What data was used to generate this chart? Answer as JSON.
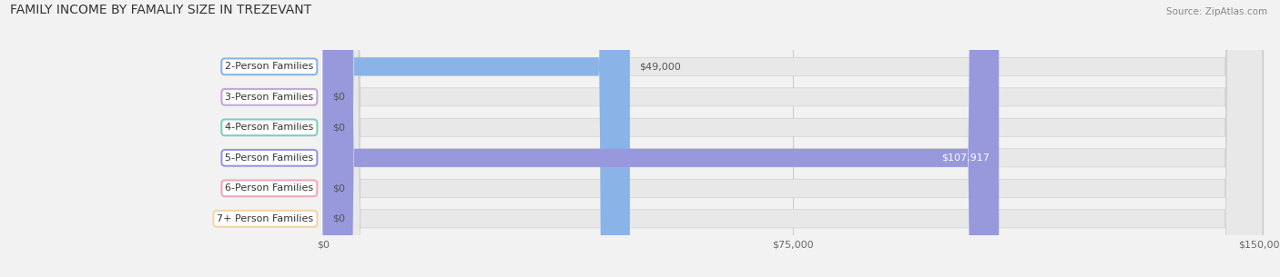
{
  "title": "FAMILY INCOME BY FAMALIY SIZE IN TREZEVANT",
  "source": "Source: ZipAtlas.com",
  "categories": [
    "2-Person Families",
    "3-Person Families",
    "4-Person Families",
    "5-Person Families",
    "6-Person Families",
    "7+ Person Families"
  ],
  "values": [
    49000,
    0,
    0,
    107917,
    0,
    0
  ],
  "labels": [
    "$49,000",
    "$0",
    "$0",
    "$107,917",
    "$0",
    "$0"
  ],
  "bar_colors": [
    "#8ab4e8",
    "#c4a8d4",
    "#7ecec4",
    "#9898dc",
    "#f4a8b8",
    "#f4d4a8"
  ],
  "label_colors": [
    "#555555",
    "#555555",
    "#555555",
    "#ffffff",
    "#555555",
    "#555555"
  ],
  "bar_bg_color": "#e8e8e8",
  "xmax": 150000,
  "xticks": [
    0,
    75000,
    150000
  ],
  "xticklabels": [
    "$0",
    "$75,000",
    "$150,000"
  ],
  "background_color": "#f2f2f2",
  "title_fontsize": 10,
  "label_fontsize": 8,
  "bar_height": 0.6
}
